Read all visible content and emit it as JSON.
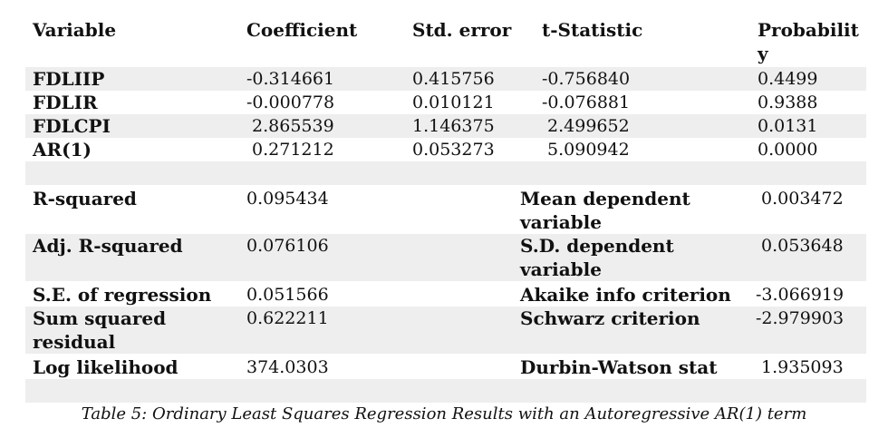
{
  "headers": [
    "Variable",
    "Coefficient",
    "Std. error",
    "t-Statistic",
    "Probability"
  ],
  "coef_rows": [
    {
      "variable": "FDLIIP",
      "coefficient": "-0.314661",
      "std_error": "0.415756",
      "t_stat": "-0.756840",
      "prob": "0.4499"
    },
    {
      "variable": "FDLIR",
      "coefficient": "-0.000778",
      "std_error": "0.010121",
      "t_stat": "-0.076881",
      "prob": "0.9388"
    },
    {
      "variable": "FDLCPI",
      "coefficient": " 2.865539",
      "std_error": "1.146375",
      "t_stat": " 2.499652",
      "prob": "0.0131"
    },
    {
      "variable": "AR(1)",
      "coefficient": " 0.271212",
      "std_error": "0.053273",
      "t_stat": " 5.090942",
      "prob": "0.0000"
    }
  ],
  "stat_rows": [
    {
      "label": "R-squared",
      "value": "0.095434",
      "label2": "Mean dependent variable",
      "value2": " 0.003472"
    },
    {
      "label": "Adj. R-squared",
      "value": "0.076106",
      "label2": "S.D. dependent variable",
      "value2": " 0.053648"
    },
    {
      "label": "S.E. of regression",
      "value": "0.051566",
      "label2": "Akaike info criterion",
      "value2": "-3.066919"
    },
    {
      "label": "Sum squared residual",
      "value": "0.622211",
      "label2": "Schwarz criterion",
      "value2": "-2.979903"
    },
    {
      "label": "Log likelihood",
      "value": "374.0303",
      "label2": "Durbin-Watson stat",
      "value2": " 1.935093"
    }
  ],
  "caption": "Table 5: Ordinary Least Squares Regression Results with an Autoregressive AR(1) term"
}
